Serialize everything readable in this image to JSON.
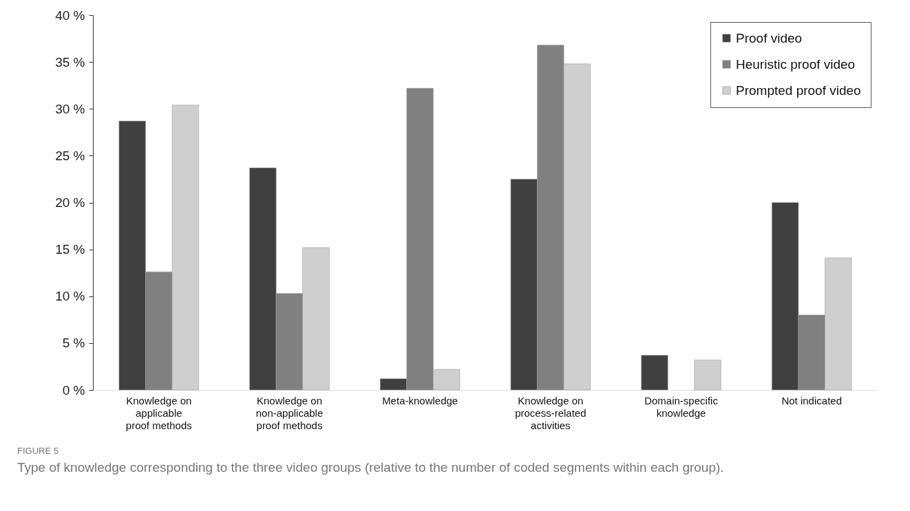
{
  "chart_data": {
    "type": "bar",
    "categories": [
      "Knowledge on applicable proof methods",
      "Knowledge on non-applicable proof methods",
      "Meta-knowledge",
      "Knowledge on process-related activities",
      "Domain-specific knowledge",
      "Not indicated"
    ],
    "series": [
      {
        "name": "Proof video",
        "color": "#404040",
        "values": [
          28.7,
          23.7,
          1.2,
          22.5,
          3.7,
          20.0
        ]
      },
      {
        "name": "Heuristic proof video",
        "color": "#808080",
        "values": [
          12.6,
          10.3,
          32.2,
          36.8,
          null,
          8.0
        ]
      },
      {
        "name": "Prompted proof video",
        "color": "#d0cfd0",
        "values": [
          30.4,
          15.2,
          2.2,
          34.8,
          3.2,
          14.1
        ]
      }
    ],
    "ylim": [
      0,
      40
    ],
    "yticks": [
      {
        "value": 0,
        "label": "0 %"
      },
      {
        "value": 5,
        "label": "5 %"
      },
      {
        "value": 10,
        "label": "10 %"
      },
      {
        "value": 15,
        "label": "15 %"
      },
      {
        "value": 20,
        "label": "20 %"
      },
      {
        "value": 25,
        "label": "25 %"
      },
      {
        "value": 30,
        "label": "30 %"
      },
      {
        "value": 35,
        "label": "35 %"
      },
      {
        "value": 40,
        "label": "40 %"
      }
    ],
    "grid": false,
    "legend": "top right",
    "annotations": [
      "FIGURE 5",
      "Type of knowledge corresponding to the three video groups (relative to the number of coded segments within each group)."
    ]
  }
}
